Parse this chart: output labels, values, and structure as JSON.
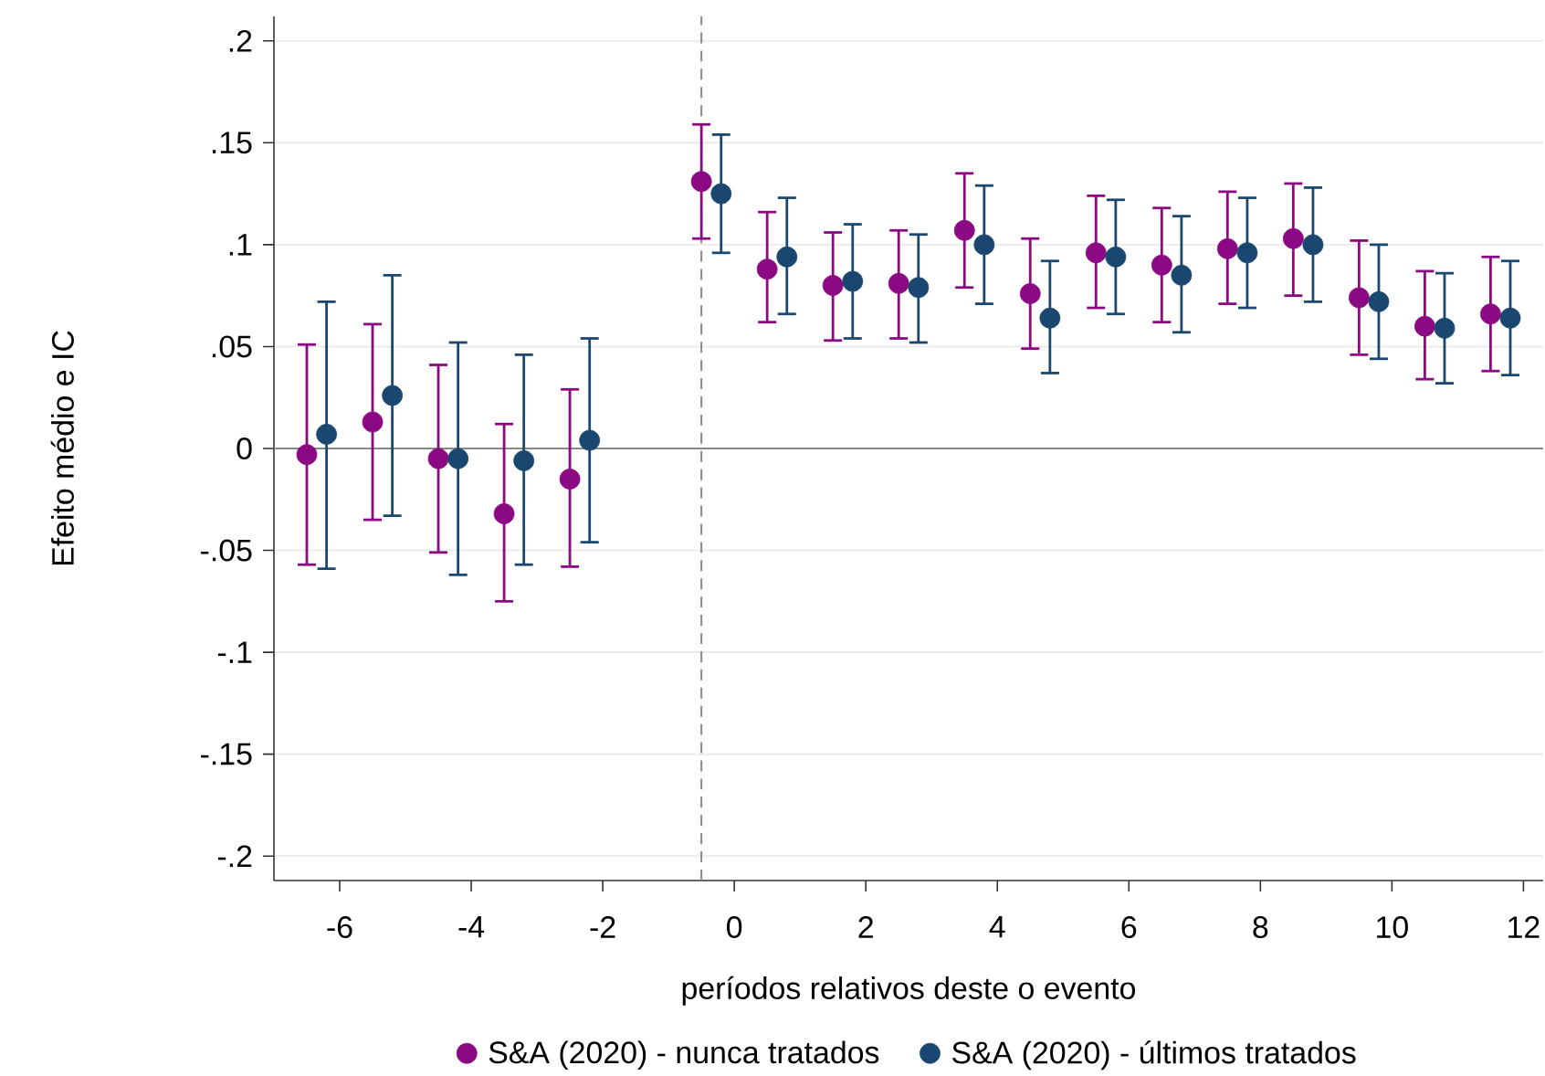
{
  "chart_data": {
    "type": "scatter",
    "xlabel": "períodos relativos deste o evento",
    "ylabel": "Efeito médio e IC",
    "xlim": [
      -7,
      12.3
    ],
    "ylim": [
      -0.212,
      0.212
    ],
    "xticks": [
      -6,
      -4,
      -2,
      0,
      2,
      4,
      6,
      8,
      10,
      12
    ],
    "yticks": [
      {
        "value": 0.2,
        "label": ".2"
      },
      {
        "value": 0.15,
        "label": ".15"
      },
      {
        "value": 0.1,
        "label": ".1"
      },
      {
        "value": 0.05,
        "label": ".05"
      },
      0,
      {
        "value": -0.05,
        "label": "-.05"
      },
      {
        "value": -0.1,
        "label": "-.1"
      },
      {
        "value": -0.15,
        "label": "-.15"
      },
      {
        "value": -0.2,
        "label": "-.2"
      }
    ],
    "grid": "y",
    "legend": "bottom",
    "marker": "circle",
    "ref_lines": [
      {
        "axis": "x",
        "value": -0.5,
        "color": "#888888",
        "line_style": "dashed"
      },
      {
        "axis": "y",
        "value": 0,
        "color": "#888888",
        "line_style": "solid"
      }
    ],
    "series": [
      {
        "name": "S&A (2020) - nunca tratados",
        "color": "#8b0a83",
        "x": [
          -6.5,
          -5.5,
          -4.5,
          -3.5,
          -2.5,
          -0.5,
          0.5,
          1.5,
          2.5,
          3.5,
          4.5,
          5.5,
          6.5,
          7.5,
          8.5,
          9.5,
          10.5,
          11.5
        ],
        "values": [
          -0.003,
          0.013,
          -0.005,
          -0.032,
          -0.015,
          0.131,
          0.088,
          0.08,
          0.081,
          0.107,
          0.076,
          0.096,
          0.09,
          0.098,
          0.103,
          0.074,
          0.06,
          0.066
        ],
        "errors": [
          [
            -0.057,
            0.051
          ],
          [
            -0.035,
            0.061
          ],
          [
            -0.051,
            0.041
          ],
          [
            -0.075,
            0.012
          ],
          [
            -0.058,
            0.029
          ],
          [
            0.103,
            0.159
          ],
          [
            0.062,
            0.116
          ],
          [
            0.053,
            0.106
          ],
          [
            0.054,
            0.107
          ],
          [
            0.079,
            0.135
          ],
          [
            0.049,
            0.103
          ],
          [
            0.069,
            0.124
          ],
          [
            0.062,
            0.118
          ],
          [
            0.071,
            0.126
          ],
          [
            0.075,
            0.13
          ],
          [
            0.046,
            0.102
          ],
          [
            0.034,
            0.087
          ],
          [
            0.038,
            0.094
          ]
        ]
      },
      {
        "name": "S&A (2020) - últimos tratados",
        "color": "#1a476f",
        "x": [
          -6.2,
          -5.2,
          -4.2,
          -3.2,
          -2.2,
          -0.2,
          0.8,
          1.8,
          2.8,
          3.8,
          4.8,
          5.8,
          6.8,
          7.8,
          8.8,
          9.8,
          10.8,
          11.8
        ],
        "values": [
          0.007,
          0.026,
          -0.005,
          -0.006,
          0.004,
          0.125,
          0.094,
          0.082,
          0.079,
          0.1,
          0.064,
          0.094,
          0.085,
          0.096,
          0.1,
          0.072,
          0.059,
          0.064
        ],
        "errors": [
          [
            -0.059,
            0.072
          ],
          [
            -0.033,
            0.085
          ],
          [
            -0.062,
            0.052
          ],
          [
            -0.057,
            0.046
          ],
          [
            -0.046,
            0.054
          ],
          [
            0.096,
            0.154
          ],
          [
            0.066,
            0.123
          ],
          [
            0.054,
            0.11
          ],
          [
            0.052,
            0.105
          ],
          [
            0.071,
            0.129
          ],
          [
            0.037,
            0.092
          ],
          [
            0.066,
            0.122
          ],
          [
            0.057,
            0.114
          ],
          [
            0.069,
            0.123
          ],
          [
            0.072,
            0.128
          ],
          [
            0.044,
            0.1
          ],
          [
            0.032,
            0.086
          ],
          [
            0.036,
            0.092
          ]
        ]
      }
    ]
  }
}
